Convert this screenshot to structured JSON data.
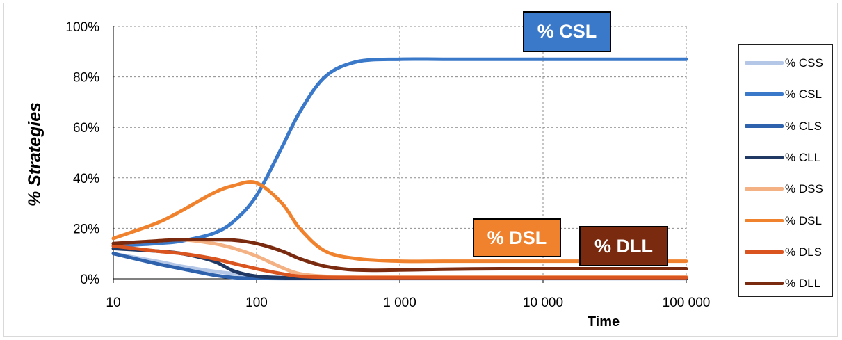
{
  "chart_data": {
    "type": "line",
    "xscale": "log",
    "xlim": [
      10,
      100000
    ],
    "ylim": [
      0,
      100
    ],
    "xlabel": "Time",
    "ylabel": "% Strategies",
    "x_ticks": [
      "10",
      "100",
      "1 000",
      "10 000",
      "100 000"
    ],
    "y_ticks": [
      "0%",
      "20%",
      "40%",
      "60%",
      "80%",
      "100%"
    ],
    "grid": true,
    "legend_position": "right",
    "x": [
      10,
      20,
      30,
      50,
      70,
      100,
      150,
      200,
      300,
      500,
      1000,
      2000,
      5000,
      10000,
      100000
    ],
    "series": [
      {
        "name": "% CSS",
        "color": "#b4c7e7",
        "values": [
          10,
          7,
          5,
          3,
          2,
          1,
          0.5,
          0.3,
          0.2,
          0.2,
          0.2,
          0.2,
          0.2,
          0.2,
          0.2
        ]
      },
      {
        "name": "% CSL",
        "color": "#3a78c9",
        "values": [
          13,
          14,
          15,
          18,
          23,
          33,
          52,
          66,
          80,
          86,
          87,
          87,
          87,
          87,
          87
        ]
      },
      {
        "name": "% CLS",
        "color": "#2e62ad",
        "values": [
          10,
          6,
          4,
          1.5,
          0.5,
          0.2,
          0.1,
          0.1,
          0.1,
          0.1,
          0.1,
          0.1,
          0.1,
          0.1,
          0.1
        ]
      },
      {
        "name": "% CLL",
        "color": "#1f3864",
        "values": [
          12,
          11,
          10,
          7,
          3,
          1,
          0.5,
          0.3,
          0.2,
          0.2,
          0.2,
          0.2,
          0.2,
          0.2,
          0.2
        ]
      },
      {
        "name": "% DSS",
        "color": "#f4b183",
        "values": [
          14,
          15,
          15.5,
          14,
          12,
          9,
          4.5,
          2,
          1,
          0.8,
          0.8,
          0.8,
          0.8,
          0.8,
          0.8
        ]
      },
      {
        "name": "% DSL",
        "color": "#f0822e",
        "values": [
          16,
          22,
          27,
          34,
          37,
          38,
          30,
          20,
          11,
          8,
          7,
          7,
          7,
          7,
          7
        ]
      },
      {
        "name": "% DLS",
        "color": "#d9541e",
        "values": [
          13,
          11,
          10,
          8,
          6,
          4,
          2,
          1,
          0.6,
          0.5,
          0.5,
          0.5,
          0.5,
          0.5,
          0.5
        ]
      },
      {
        "name": "% DLL",
        "color": "#7a2a0e",
        "values": [
          14,
          15,
          15.5,
          15.5,
          15.3,
          14,
          11,
          8,
          5,
          3.5,
          3.5,
          3.8,
          4,
          4,
          4
        ]
      }
    ],
    "callouts": [
      {
        "label": "% CSL",
        "color": "#3a78c9"
      },
      {
        "label": "% DSL",
        "color": "#f0822e"
      },
      {
        "label": "% DLL",
        "color": "#7a2a0e"
      }
    ]
  }
}
